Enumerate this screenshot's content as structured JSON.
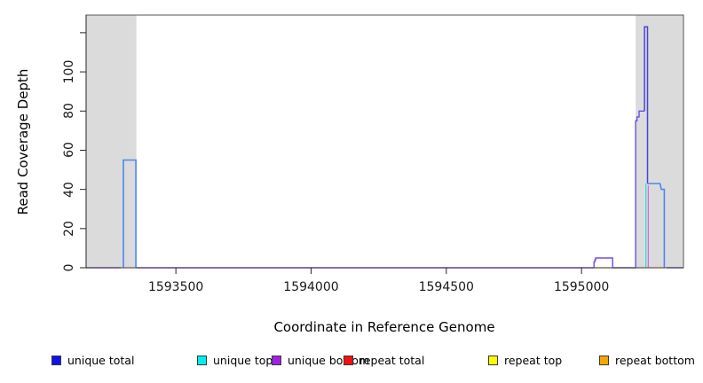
{
  "chart_data": {
    "type": "line",
    "title": "",
    "xlabel": "Coordinate in Reference Genome",
    "ylabel": "Read Coverage Depth",
    "xlim": [
      1593168,
      1595377
    ],
    "ylim": [
      0,
      129
    ],
    "grid": false,
    "legend_position": "bottom",
    "x_ticks": [
      {
        "v": 1593500,
        "label": "1593500"
      },
      {
        "v": 1594000,
        "label": "1594000"
      },
      {
        "v": 1594500,
        "label": "1594500"
      },
      {
        "v": 1595000,
        "label": "1595000"
      }
    ],
    "y_ticks": [
      {
        "v": 0,
        "label": "0"
      },
      {
        "v": 20,
        "label": "20"
      },
      {
        "v": 40,
        "label": "40"
      },
      {
        "v": 60,
        "label": "60"
      },
      {
        "v": 80,
        "label": "80"
      },
      {
        "v": 100,
        "label": "100"
      },
      {
        "v": 120,
        "label": ""
      }
    ],
    "shaded_regions": [
      {
        "x0": 1593168,
        "x1": 1593354,
        "color": "#dbdbdb"
      },
      {
        "x0": 1595200,
        "x1": 1595377,
        "color": "#dbdbdb"
      }
    ],
    "series": [
      {
        "name": "repeat-total-baseline",
        "color": "#e03c3c",
        "width": 1.2,
        "segments": [
          [
            [
              1593168,
              0
            ],
            [
              1595377,
              0
            ]
          ]
        ]
      },
      {
        "name": "top-strand-baseline-overlap",
        "color": "#74ce74",
        "width": 1.2,
        "segments": [
          [
            [
              1595046,
              0
            ],
            [
              1595247,
              0
            ]
          ]
        ]
      },
      {
        "name": "unique-top-rise",
        "color": "#2be0e0",
        "width": 1.3,
        "segments": [
          [
            [
              1595238,
              0
            ],
            [
              1595238,
              43
            ]
          ]
        ]
      },
      {
        "name": "unique-bottom-fall-overlap",
        "color": "#d86ce0",
        "width": 1.3,
        "segments": [
          [
            [
              1595247,
              0
            ],
            [
              1595247,
              42
            ]
          ]
        ]
      },
      {
        "name": "unique-bottom",
        "color": "#6a4fe8",
        "width": 1.4,
        "segments": [
          [
            [
              1593168,
              0
            ],
            [
              1593296,
              0
            ]
          ],
          [
            [
              1593352,
              0
            ],
            [
              1595046,
              0
            ],
            [
              1595046,
              3
            ],
            [
              1595049,
              3
            ],
            [
              1595049,
              4
            ],
            [
              1595052,
              4
            ],
            [
              1595052,
              5
            ],
            [
              1595115,
              5
            ],
            [
              1595115,
              0
            ],
            [
              1595200,
              0
            ],
            [
              1595200,
              75
            ],
            [
              1595205,
              75
            ],
            [
              1595205,
              77
            ],
            [
              1595213,
              77
            ],
            [
              1595213,
              80
            ],
            [
              1595233,
              80
            ]
          ],
          [
            [
              1595315,
              0
            ],
            [
              1595377,
              0
            ]
          ]
        ]
      },
      {
        "name": "unique-total-spike",
        "color": "#4b42dd",
        "width": 1.5,
        "segments": [
          [
            [
              1595233,
              80
            ],
            [
              1595233,
              123
            ],
            [
              1595244,
              123
            ],
            [
              1595244,
              43
            ]
          ]
        ]
      },
      {
        "name": "unique-total",
        "color": "#4c86f0",
        "width": 1.6,
        "segments": [
          [
            [
              1593306,
              0
            ],
            [
              1593306,
              55
            ],
            [
              1593352,
              55
            ],
            [
              1593352,
              0
            ]
          ],
          [
            [
              1595244,
              43
            ],
            [
              1595290,
              43
            ],
            [
              1595292,
              42
            ],
            [
              1595295,
              40
            ],
            [
              1595306,
              40
            ],
            [
              1595306,
              0
            ]
          ]
        ]
      }
    ],
    "legend": [
      {
        "label": "unique total",
        "color": "#1212e8"
      },
      {
        "label": "unique top",
        "color": "#00eeee"
      },
      {
        "label": "unique bottom",
        "color": "#a21fe8"
      },
      {
        "label": "repeat total",
        "color": "#f50f0f"
      },
      {
        "label": "repeat top",
        "color": "#fbfb00"
      },
      {
        "label": "repeat bottom",
        "color": "#f5a600"
      }
    ]
  }
}
